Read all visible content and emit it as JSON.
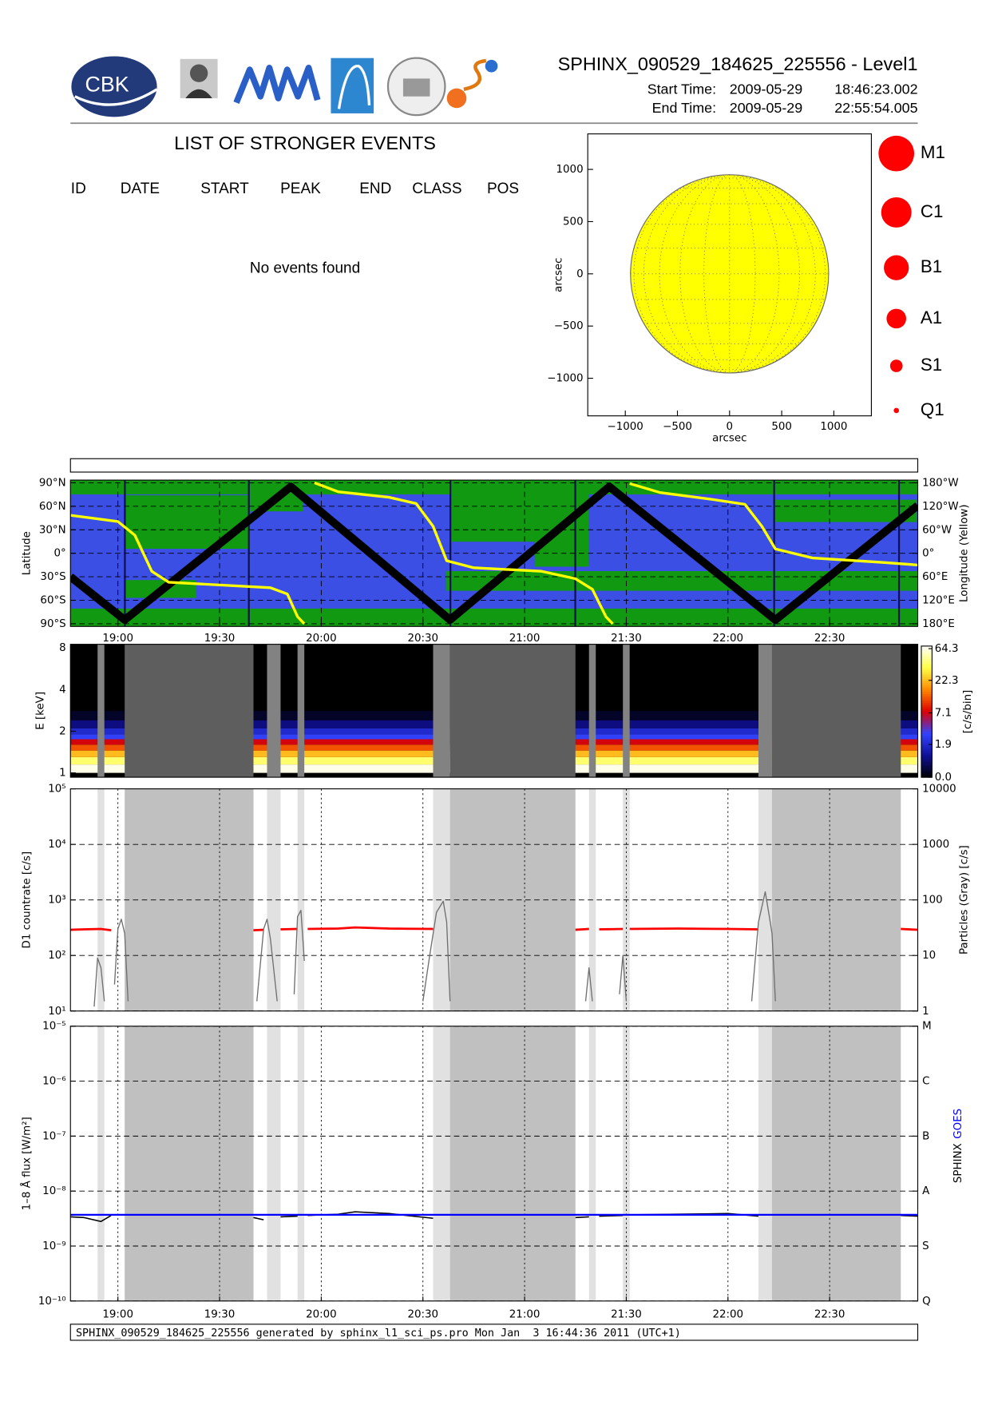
{
  "header": {
    "logo_text": "CBK",
    "title": "SPHINX_090529_184625_225556 - Level1",
    "start_time": {
      "label": "Start Time:",
      "date": "2009-05-29",
      "time": "18:46:23.002"
    },
    "end_time": {
      "label": "End Time:",
      "date": "2009-05-29",
      "time": "22:55:54.005"
    }
  },
  "events": {
    "title": "LIST OF STRONGER EVENTS",
    "columns": [
      "ID",
      "DATE",
      "START",
      "PEAK",
      "END",
      "CLASS",
      "POS"
    ],
    "message": "No events found"
  },
  "footer": "SPHINX_090529_184625_225556 generated by sphinx_l1_sci_ps.pro Mon Jan  3 16:44:36 2011 (UTC+1)",
  "chart_data": [
    {
      "type": "disk",
      "xlabel": "arcsec",
      "ylabel": "arcsec",
      "xlim": [
        -1360,
        1360
      ],
      "ylim": [
        -1360,
        1340
      ],
      "xticks": [
        {
          "value": -1000,
          "label": "−1000"
        },
        {
          "value": -500,
          "label": "−500"
        },
        0,
        500,
        1000
      ],
      "yticks": [
        {
          "value": -1000,
          "label": "−1000"
        },
        {
          "value": -500,
          "label": "−500"
        },
        0,
        500,
        1000
      ],
      "sun_radius": 950,
      "sun_color": "#ffff00",
      "legend": {
        "classes": [
          "M1",
          "C1",
          "B1",
          "A1",
          "S1",
          "Q1"
        ],
        "color": "#ff0000"
      }
    },
    {
      "type": "line",
      "ylabel": "Latitude",
      "y2label": "Longitude (Yellow)",
      "xlim": [
        "18:46",
        "22:56"
      ],
      "xticks": [
        "19:00",
        "19:30",
        "20:00",
        "20:30",
        "21:00",
        "21:30",
        "22:00",
        "22:30"
      ],
      "ylim": [
        -90,
        90
      ],
      "yticks": [
        {
          "value": -90,
          "label": "90°S"
        },
        {
          "value": -60,
          "label": "60°S"
        },
        {
          "value": -30,
          "label": "30°S"
        },
        {
          "value": 0,
          "label": "0°"
        },
        {
          "value": 30,
          "label": "30°N"
        },
        {
          "value": 60,
          "label": "60°N"
        },
        {
          "value": 90,
          "label": "90°N"
        }
      ],
      "y2lim": [
        180,
        -180
      ],
      "y2ticks": [
        {
          "value": -180,
          "label": "180°W"
        },
        {
          "value": -120,
          "label": "120°W"
        },
        {
          "value": -60,
          "label": "60°W"
        },
        {
          "value": 0,
          "label": "0°"
        },
        {
          "value": 60,
          "label": "60°E"
        },
        {
          "value": 120,
          "label": "120°E"
        },
        {
          "value": 180,
          "label": "180°E"
        }
      ],
      "grid": true,
      "series": [
        {
          "color": "#000000",
          "x": [
            "18:46",
            "19:02",
            "19:51",
            "20:38",
            "21:25",
            "22:14",
            "22:56"
          ],
          "values": [
            -30,
            -85,
            85,
            -85,
            85,
            -85,
            61
          ]
        },
        {
          "color": "#ffff00",
          "axis": "y2",
          "x": [
            "18:46",
            "19:00",
            "19:05",
            "19:10",
            "19:15",
            "19:30",
            "19:45",
            "19:50",
            "19:53",
            "19:55",
            "19:56",
            "19:58",
            "20:05",
            "20:20",
            "20:28",
            "20:33",
            "20:37",
            "20:45",
            "21:05",
            "21:15",
            "21:20",
            "21:24",
            "21:26",
            "21:28",
            "21:31",
            "21:40",
            "21:55",
            "22:05",
            "22:10",
            "22:14",
            "22:25",
            "22:45",
            "22:56"
          ],
          "values": [
            -97,
            -81,
            -46,
            46,
            74,
            81,
            88,
            104,
            162,
            180,
            null,
            -180,
            -157,
            -143,
            -127,
            -69,
            19,
            37,
            46,
            65,
            92,
            162,
            180,
            null,
            -178,
            -155,
            -138,
            -125,
            -69,
            -11,
            12,
            23,
            30
          ]
        }
      ]
    },
    {
      "type": "heatmap",
      "ylabel": "E [keV]",
      "yscale": "log",
      "ylim": [
        0.93,
        8.5
      ],
      "yticks": [
        1,
        2,
        4,
        8
      ],
      "energy_bins": [
        1,
        1.15,
        1.3,
        1.45,
        1.6,
        1.75,
        1.9,
        2.1,
        2.4,
        2.8
      ],
      "levels": [
        64.3,
        40,
        22.3,
        12,
        7.1,
        3,
        1.9,
        0.8,
        0.2
      ],
      "colorbar": {
        "label": "[c/s/bin]",
        "lim": [
          0,
          70
        ],
        "ticks": [
          {
            "value": 0,
            "label": "0.0"
          },
          1.9,
          7.1,
          22.3,
          64.3
        ],
        "colors": [
          "#000000",
          "#10109a",
          "#3344ff",
          "#dd0000",
          "#ff8800",
          "#ffff44",
          "#ffffff"
        ]
      }
    },
    {
      "type": "line",
      "ylabel": "D1 countrate [c/s]",
      "y2label": "Particles (Gray) [c/s]",
      "yscale": "log",
      "ylim": [
        10,
        100000
      ],
      "yticks": [
        {
          "value": 10,
          "label": "10¹"
        },
        {
          "value": 100,
          "label": "10²"
        },
        {
          "value": 1000,
          "label": "10³"
        },
        {
          "value": 10000,
          "label": "10⁴"
        },
        {
          "value": 100000,
          "label": "10⁵"
        }
      ],
      "y2lim": [
        1,
        10000
      ],
      "y2ticks": [
        1,
        10,
        100,
        1000,
        10000
      ],
      "grid": true,
      "shaded_intervals": [
        {
          "start": "18:54",
          "end": "18:56",
          "shade": "light"
        },
        {
          "start": "19:02",
          "end": "19:40",
          "shade": "dark"
        },
        {
          "start": "19:44",
          "end": "19:48",
          "shade": "light"
        },
        {
          "start": "19:53",
          "end": "19:55",
          "shade": "light"
        },
        {
          "start": "20:33",
          "end": "20:38",
          "shade": "light"
        },
        {
          "start": "20:38",
          "end": "21:15",
          "shade": "dark"
        },
        {
          "start": "21:19",
          "end": "21:21",
          "shade": "light"
        },
        {
          "start": "21:29",
          "end": "21:31",
          "shade": "light"
        },
        {
          "start": "22:09",
          "end": "22:13",
          "shade": "light"
        },
        {
          "start": "22:13",
          "end": "22:51",
          "shade": "dark"
        }
      ],
      "series": [
        {
          "color": "#ff0000",
          "x": [
            "18:46",
            "18:50",
            "18:55",
            "18:58",
            "18:59",
            "19:40",
            "19:43",
            "19:44",
            "19:48",
            "19:53",
            "19:54",
            "19:56",
            "20:05",
            "20:10",
            "20:20",
            "20:33",
            "20:34",
            "21:15",
            "21:19",
            "21:20",
            "21:22",
            "21:29",
            "21:30",
            "21:31",
            "21:45",
            "22:00",
            "22:09",
            "22:10",
            "22:51",
            "22:56"
          ],
          "values": [
            290,
            295,
            300,
            285,
            null,
            285,
            290,
            null,
            295,
            300,
            null,
            300,
            305,
            320,
            305,
            300,
            null,
            290,
            300,
            null,
            295,
            300,
            null,
            300,
            305,
            300,
            295,
            null,
            300,
            290
          ]
        },
        {
          "color": "#707070",
          "axis": "y2",
          "x": [
            "18:53",
            "18:54",
            "18:55",
            "18:56",
            "18:57",
            "18:59",
            "19:00",
            "19:01",
            "19:02",
            "19:03",
            "19:20",
            "19:41",
            "19:43",
            "19:44",
            "19:45",
            "19:47",
            "19:50",
            "19:52",
            "19:53",
            "19:54",
            "19:55",
            "20:10",
            "20:30",
            "20:32",
            "20:34",
            "20:36",
            "20:37",
            "20:38",
            "21:00",
            "21:18",
            "21:19",
            "21:20",
            "21:25",
            "21:28",
            "21:29",
            "21:30",
            "21:50",
            "22:07",
            "22:09",
            "22:11",
            "22:12",
            "22:13",
            "22:14"
          ],
          "values": [
            1.2,
            9,
            6,
            1.5,
            null,
            3,
            30,
            45,
            25,
            1.5,
            null,
            1.5,
            30,
            45,
            20,
            1.5,
            null,
            2,
            50,
            65,
            8,
            null,
            1.5,
            10,
            60,
            95,
            40,
            1.5,
            null,
            1.5,
            6,
            1.5,
            null,
            2,
            10,
            1.5,
            null,
            1.5,
            40,
            140,
            60,
            25,
            1.5
          ]
        }
      ]
    },
    {
      "type": "line",
      "ylabel": "1–8 Å flux [W/m²]",
      "yscale": "log",
      "xlim": [
        "18:46",
        "22:56"
      ],
      "xticks": [
        "19:00",
        "19:30",
        "20:00",
        "20:30",
        "21:00",
        "21:30",
        "22:00",
        "22:30"
      ],
      "ylim": [
        1e-10,
        1e-05
      ],
      "yticks": [
        {
          "value": 1e-10,
          "label": "10⁻¹⁰"
        },
        {
          "value": 1e-09,
          "label": "10⁻⁹"
        },
        {
          "value": 1e-08,
          "label": "10⁻⁸"
        },
        {
          "value": 1e-07,
          "label": "10⁻⁷"
        },
        {
          "value": 1e-06,
          "label": "10⁻⁶"
        },
        {
          "value": 1e-05,
          "label": "10⁻⁵"
        }
      ],
      "y2ticks": [
        {
          "value": 1e-10,
          "label": "Q"
        },
        {
          "value": 1e-09,
          "label": "S"
        },
        {
          "value": 1e-08,
          "label": "A"
        },
        {
          "value": 1e-07,
          "label": "B"
        },
        {
          "value": 1e-06,
          "label": "C"
        },
        {
          "value": 1e-05,
          "label": "M"
        }
      ],
      "grid": true,
      "series": [
        {
          "name": "SPHINX",
          "color": "#000000",
          "x": [
            "18:46",
            "18:50",
            "18:55",
            "18:58",
            "18:59",
            "19:40",
            "19:43",
            "19:44",
            "19:48",
            "19:53",
            "19:54",
            "19:56",
            "20:05",
            "20:10",
            "20:20",
            "20:33",
            "20:34",
            "21:15",
            "21:19",
            "21:20",
            "21:22",
            "21:29",
            "21:30",
            "21:31",
            "21:45",
            "22:00",
            "22:09",
            "22:10",
            "22:51",
            "22:56"
          ],
          "values": [
            3.4e-09,
            3.3e-09,
            2.8e-09,
            3.6e-09,
            null,
            3.3e-09,
            3e-09,
            null,
            3.4e-09,
            3.5e-09,
            null,
            3.6e-09,
            3.8e-09,
            4.2e-09,
            3.9e-09,
            3.2e-09,
            null,
            3.3e-09,
            3.4e-09,
            null,
            3.5e-09,
            3.6e-09,
            null,
            3.7e-09,
            3.8e-09,
            3.9e-09,
            3.5e-09,
            null,
            3.6e-09,
            3.5e-09
          ]
        },
        {
          "name": "GOES",
          "color": "#0000ff",
          "x": [
            "18:46",
            "22:56"
          ],
          "values": [
            3.7e-09,
            3.7e-09
          ]
        }
      ]
    }
  ]
}
